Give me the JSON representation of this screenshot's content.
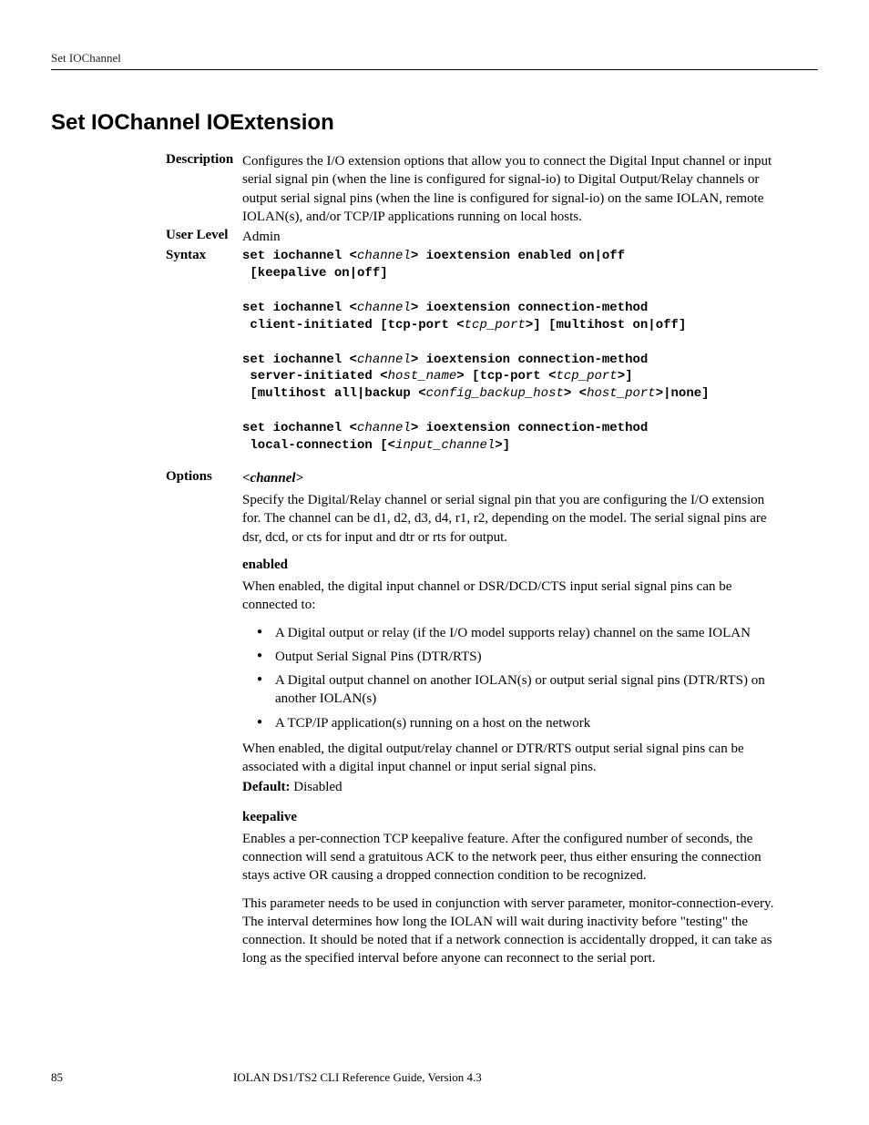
{
  "header": {
    "running_head": "Set IOChannel"
  },
  "title": "Set IOChannel IOExtension",
  "description": {
    "label": "Description",
    "text": "Configures the I/O extension options that allow you to connect the Digital Input channel or input serial signal pin (when the line is configured for signal-io) to Digital Output/Relay channels or output serial signal pins (when the line is configured for signal-io) on the same IOLAN, remote IOLAN(s), and/or TCP/IP applications running on local hosts."
  },
  "user_level": {
    "label": "User Level",
    "value": "Admin"
  },
  "syntax": {
    "label": "Syntax",
    "lines": [
      [
        {
          "t": "set iochannel <",
          "i": false
        },
        {
          "t": "channel",
          "i": true
        },
        {
          "t": "> ioextension enabled on|off",
          "i": false
        }
      ],
      [
        {
          "t": " [keepalive on|off]",
          "i": false
        }
      ],
      [],
      [
        {
          "t": "set iochannel <",
          "i": false
        },
        {
          "t": "channel",
          "i": true
        },
        {
          "t": "> ioextension connection-method",
          "i": false
        }
      ],
      [
        {
          "t": " client-initiated [tcp-port <",
          "i": false
        },
        {
          "t": "tcp_port",
          "i": true
        },
        {
          "t": ">] [multihost on|off]",
          "i": false
        }
      ],
      [],
      [
        {
          "t": "set iochannel <",
          "i": false
        },
        {
          "t": "channel",
          "i": true
        },
        {
          "t": "> ioextension connection-method",
          "i": false
        }
      ],
      [
        {
          "t": " server-initiated <",
          "i": false
        },
        {
          "t": "host_name",
          "i": true
        },
        {
          "t": "> [tcp-port <",
          "i": false
        },
        {
          "t": "tcp_port",
          "i": true
        },
        {
          "t": ">]",
          "i": false
        }
      ],
      [
        {
          "t": " [multihost all|backup <",
          "i": false
        },
        {
          "t": "config_backup_host",
          "i": true
        },
        {
          "t": "> <",
          "i": false
        },
        {
          "t": "host_port",
          "i": true
        },
        {
          "t": ">|none]",
          "i": false
        }
      ],
      [],
      [
        {
          "t": "set iochannel <",
          "i": false
        },
        {
          "t": "channel",
          "i": true
        },
        {
          "t": "> ioextension connection-method",
          "i": false
        }
      ],
      [
        {
          "t": " local-connection [<",
          "i": false
        },
        {
          "t": "input_channel",
          "i": true
        },
        {
          "t": ">]",
          "i": false
        }
      ]
    ]
  },
  "options": {
    "label": "Options",
    "first_head": "<channel>",
    "channel_para": "Specify the Digital/Relay channel or serial signal pin that you are configuring the I/O extension for. The channel can be d1, d2, d3, d4, r1, r2, depending on the model. The serial signal pins are dsr, dcd, or cts for input and dtr or rts for output.",
    "enabled_head": "enabled",
    "enabled_intro": "When enabled, the digital input channel or DSR/DCD/CTS input serial signal pins can be connected to:",
    "enabled_bullets": [
      "A Digital output or relay (if the I/O model supports relay) channel on the same IOLAN",
      "Output Serial Signal Pins (DTR/RTS)",
      "A Digital output channel on another IOLAN(s) or output serial signal pins (DTR/RTS) on another IOLAN(s)",
      "A TCP/IP application(s) running on a host on the network"
    ],
    "enabled_outro": "When enabled, the digital output/relay channel or DTR/RTS output serial signal pins can be associated with a digital input channel or input serial signal pins.",
    "default_label": "Default:",
    "default_value": "Disabled",
    "keepalive_head": "keepalive",
    "keepalive_p1": "Enables a per-connection TCP keepalive feature. After the configured number of seconds, the connection will send a gratuitous ACK to the network peer, thus either ensuring the connection stays active OR causing a dropped connection condition to be recognized.",
    "keepalive_p2": "This parameter needs to be used in conjunction with server parameter, monitor-connection-every. The interval determines how long the IOLAN will wait during inactivity before \"testing\" the connection. It should be noted that if a network connection is accidentally dropped, it can take as long as the specified interval before anyone can reconnect to the serial port."
  },
  "footer": {
    "page_number": "85",
    "doc_title": "IOLAN DS1/TS2 CLI Reference Guide, Version 4.3"
  }
}
